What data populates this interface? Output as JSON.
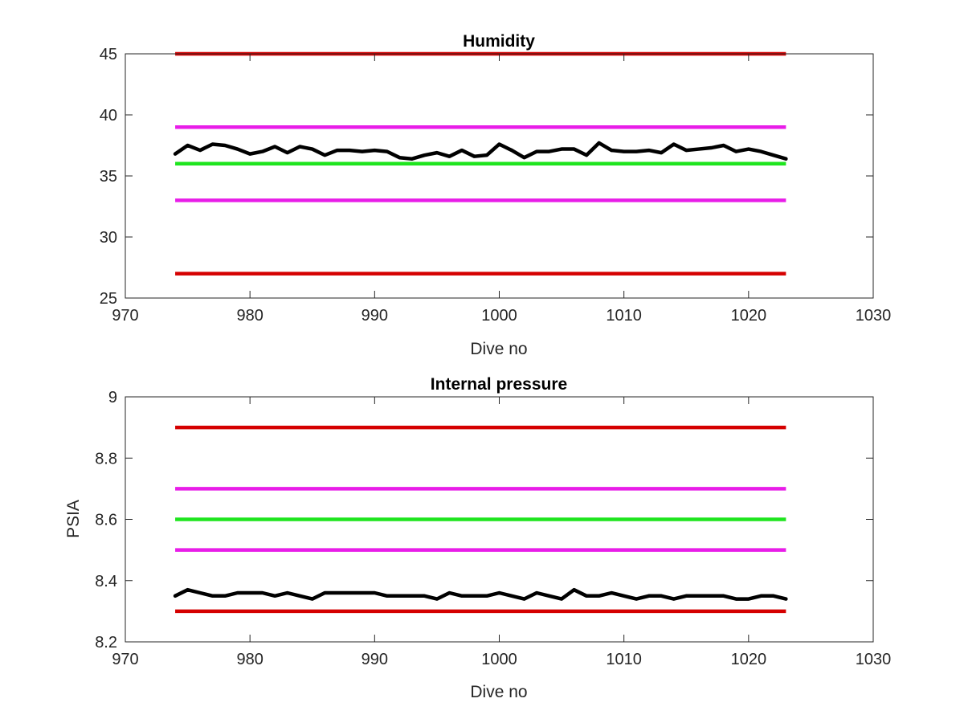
{
  "chart_data": [
    {
      "type": "line",
      "title": "Humidity",
      "xlabel": "Dive no",
      "ylabel": "",
      "xlim": [
        970,
        1030
      ],
      "ylim": [
        25,
        45
      ],
      "xticks": [
        970,
        980,
        990,
        1000,
        1010,
        1020,
        1030
      ],
      "yticks": [
        25,
        30,
        35,
        40,
        45
      ],
      "grid": false,
      "reference_lines": [
        {
          "y": 45,
          "x": [
            974,
            1023
          ],
          "color": "#d50000"
        },
        {
          "y": 39,
          "x": [
            974,
            1023
          ],
          "color": "#e81de8"
        },
        {
          "y": 36,
          "x": [
            974,
            1023
          ],
          "color": "#1ee51e"
        },
        {
          "y": 33,
          "x": [
            974,
            1023
          ],
          "color": "#e81de8"
        },
        {
          "y": 27,
          "x": [
            974,
            1023
          ],
          "color": "#d50000"
        }
      ],
      "series": [
        {
          "color": "#000000",
          "x": [
            974,
            975,
            976,
            977,
            978,
            979,
            980,
            981,
            982,
            983,
            984,
            985,
            986,
            987,
            988,
            989,
            990,
            991,
            992,
            993,
            994,
            995,
            996,
            997,
            998,
            999,
            1000,
            1001,
            1002,
            1003,
            1004,
            1005,
            1006,
            1007,
            1008,
            1009,
            1010,
            1011,
            1012,
            1013,
            1014,
            1015,
            1016,
            1017,
            1018,
            1019,
            1020,
            1021,
            1022,
            1023
          ],
          "y": [
            36.8,
            37.5,
            37.1,
            37.6,
            37.5,
            37.2,
            36.8,
            37.0,
            37.4,
            36.9,
            37.4,
            37.2,
            36.7,
            37.1,
            37.1,
            37.0,
            37.1,
            37.0,
            36.5,
            36.4,
            36.7,
            36.9,
            36.6,
            37.1,
            36.6,
            36.7,
            37.6,
            37.1,
            36.5,
            37.0,
            37.0,
            37.2,
            37.2,
            36.7,
            37.7,
            37.1,
            37.0,
            37.0,
            37.1,
            36.9,
            37.6,
            37.1,
            37.2,
            37.3,
            37.5,
            37.0,
            37.2,
            37.0,
            36.7,
            36.4
          ]
        }
      ]
    },
    {
      "type": "line",
      "title": "Internal pressure",
      "xlabel": "Dive no",
      "ylabel": "PSIA",
      "xlim": [
        970,
        1030
      ],
      "ylim": [
        8.2,
        9
      ],
      "xticks": [
        970,
        980,
        990,
        1000,
        1010,
        1020,
        1030
      ],
      "yticks": [
        8.2,
        8.4,
        8.6,
        8.8,
        9
      ],
      "grid": false,
      "reference_lines": [
        {
          "y": 8.9,
          "x": [
            974,
            1023
          ],
          "color": "#d50000"
        },
        {
          "y": 8.7,
          "x": [
            974,
            1023
          ],
          "color": "#e81de8"
        },
        {
          "y": 8.6,
          "x": [
            974,
            1023
          ],
          "color": "#1ee51e"
        },
        {
          "y": 8.5,
          "x": [
            974,
            1023
          ],
          "color": "#e81de8"
        },
        {
          "y": 8.3,
          "x": [
            974,
            1023
          ],
          "color": "#d50000"
        }
      ],
      "series": [
        {
          "color": "#000000",
          "x": [
            974,
            975,
            976,
            977,
            978,
            979,
            980,
            981,
            982,
            983,
            984,
            985,
            986,
            987,
            988,
            989,
            990,
            991,
            992,
            993,
            994,
            995,
            996,
            997,
            998,
            999,
            1000,
            1001,
            1002,
            1003,
            1004,
            1005,
            1006,
            1007,
            1008,
            1009,
            1010,
            1011,
            1012,
            1013,
            1014,
            1015,
            1016,
            1017,
            1018,
            1019,
            1020,
            1021,
            1022,
            1023
          ],
          "y": [
            8.35,
            8.37,
            8.36,
            8.35,
            8.35,
            8.36,
            8.36,
            8.36,
            8.35,
            8.36,
            8.35,
            8.34,
            8.36,
            8.36,
            8.36,
            8.36,
            8.36,
            8.35,
            8.35,
            8.35,
            8.35,
            8.34,
            8.36,
            8.35,
            8.35,
            8.35,
            8.36,
            8.35,
            8.34,
            8.36,
            8.35,
            8.34,
            8.37,
            8.35,
            8.35,
            8.36,
            8.35,
            8.34,
            8.35,
            8.35,
            8.34,
            8.35,
            8.35,
            8.35,
            8.35,
            8.34,
            8.34,
            8.35,
            8.35,
            8.34
          ]
        }
      ]
    }
  ]
}
